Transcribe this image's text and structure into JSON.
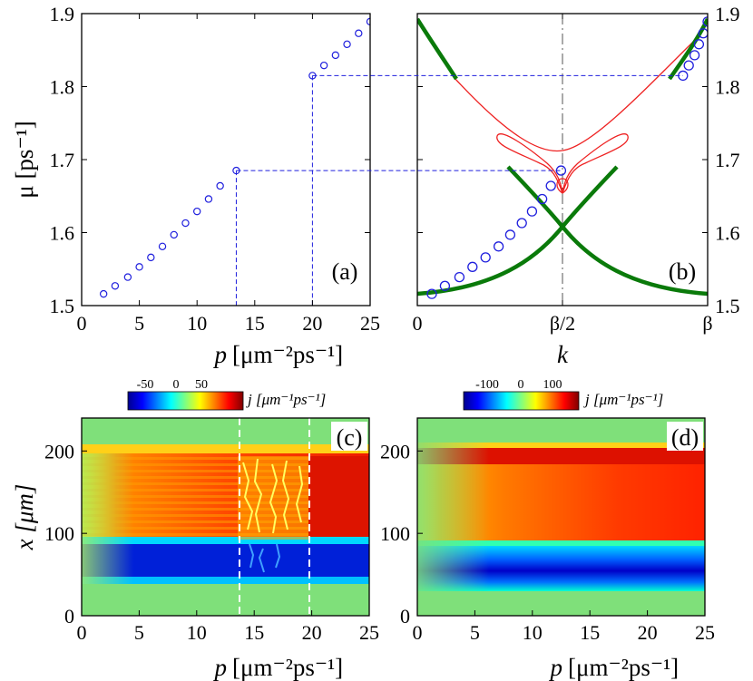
{
  "chart_data": [
    {
      "panel": "(a)",
      "type": "scatter",
      "marker": "open-circle",
      "color": "#1f1fdd",
      "xlabel": "p",
      "xlabel_units": "[μm⁻²ps⁻¹]",
      "ylabel": "μ [ps⁻¹]",
      "xlim": [
        0,
        25
      ],
      "ylim": [
        1.5,
        1.9
      ],
      "xticks": [
        "0",
        "5",
        "10",
        "15",
        "20",
        "25"
      ],
      "yticks": [
        "1.5",
        "1.6",
        "1.7",
        "1.8",
        "1.9"
      ],
      "points": [
        {
          "x": 1.9,
          "y": 1.516
        },
        {
          "x": 2.9,
          "y": 1.527
        },
        {
          "x": 4.0,
          "y": 1.539
        },
        {
          "x": 5.0,
          "y": 1.553
        },
        {
          "x": 6.0,
          "y": 1.566
        },
        {
          "x": 7.0,
          "y": 1.581
        },
        {
          "x": 8.0,
          "y": 1.597
        },
        {
          "x": 9.0,
          "y": 1.613
        },
        {
          "x": 10.0,
          "y": 1.629
        },
        {
          "x": 11.0,
          "y": 1.646
        },
        {
          "x": 12.0,
          "y": 1.664
        },
        {
          "x": 13.4,
          "y": 1.685
        },
        {
          "x": 20.0,
          "y": 1.815
        },
        {
          "x": 21.0,
          "y": 1.829
        },
        {
          "x": 22.0,
          "y": 1.843
        },
        {
          "x": 23.0,
          "y": 1.858
        },
        {
          "x": 24.0,
          "y": 1.873
        },
        {
          "x": 25.0,
          "y": 1.889
        }
      ],
      "guides": [
        {
          "x": 13.4,
          "y": 1.685
        },
        {
          "x": 20.0,
          "y": 1.815
        }
      ],
      "panel_label": "(a)"
    },
    {
      "panel": "(b)",
      "type": "line",
      "xlabel": "k",
      "ylabel": "μ [ps⁻¹]",
      "xlim": [
        0,
        1
      ],
      "ylim": [
        1.5,
        1.9
      ],
      "xticks": [
        "0",
        "β/2",
        "β"
      ],
      "yticks": [
        "1.5",
        "1.6",
        "1.7",
        "1.8",
        "1.9"
      ],
      "series": [
        {
          "name": "stable band (green, thick)",
          "color": "#0a7a0a"
        },
        {
          "name": "unstable band (red, thin)",
          "color": "#ee2222"
        },
        {
          "name": "numerical points",
          "color": "#1f1fdd",
          "marker": "open-circle",
          "points": [
            {
              "x": 0.05,
              "y": 1.516
            },
            {
              "x": 0.095,
              "y": 1.527
            },
            {
              "x": 0.145,
              "y": 1.539
            },
            {
              "x": 0.19,
              "y": 1.553
            },
            {
              "x": 0.235,
              "y": 1.566
            },
            {
              "x": 0.28,
              "y": 1.581
            },
            {
              "x": 0.32,
              "y": 1.597
            },
            {
              "x": 0.36,
              "y": 1.613
            },
            {
              "x": 0.395,
              "y": 1.629
            },
            {
              "x": 0.43,
              "y": 1.646
            },
            {
              "x": 0.46,
              "y": 1.664
            },
            {
              "x": 0.495,
              "y": 1.685
            },
            {
              "x": 0.915,
              "y": 1.815
            },
            {
              "x": 0.935,
              "y": 1.829
            },
            {
              "x": 0.955,
              "y": 1.843
            },
            {
              "x": 0.97,
              "y": 1.858
            },
            {
              "x": 0.985,
              "y": 1.873
            },
            {
              "x": 1.0,
              "y": 1.889
            }
          ]
        }
      ],
      "panel_label": "(b)"
    },
    {
      "panel": "(c)",
      "type": "heatmap",
      "xlabel": "p",
      "xlabel_units": "[μm⁻²ps⁻¹]",
      "ylabel": "x [μm]",
      "xlim": [
        0,
        25
      ],
      "ylim": [
        0,
        240
      ],
      "xticks": [
        "0",
        "5",
        "10",
        "15",
        "20",
        "25"
      ],
      "yticks": [
        "0",
        "100",
        "200"
      ],
      "colorbar": {
        "label": "j [μm⁻¹ps⁻¹]",
        "ticks": [
          "-50",
          "0",
          "50"
        ]
      },
      "dashed_lines_x": [
        14.2,
        20.2
      ],
      "panel_label": "(c)"
    },
    {
      "panel": "(d)",
      "type": "heatmap",
      "xlabel": "p",
      "xlabel_units": "[μm⁻²ps⁻¹]",
      "xlim": [
        0,
        25
      ],
      "ylim": [
        0,
        240
      ],
      "xticks": [
        "0",
        "5",
        "10",
        "15",
        "20",
        "25"
      ],
      "yticks": [
        "0",
        "100",
        "200"
      ],
      "colorbar": {
        "label": "j [μm⁻¹ps⁻¹]",
        "ticks": [
          "-100",
          "0",
          "100"
        ]
      },
      "panel_label": "(d)"
    }
  ],
  "colors": {
    "blue": "#1f1fdd",
    "green": "#0a7a0a",
    "red": "#ee2222",
    "background_green": "#7fe07a"
  }
}
